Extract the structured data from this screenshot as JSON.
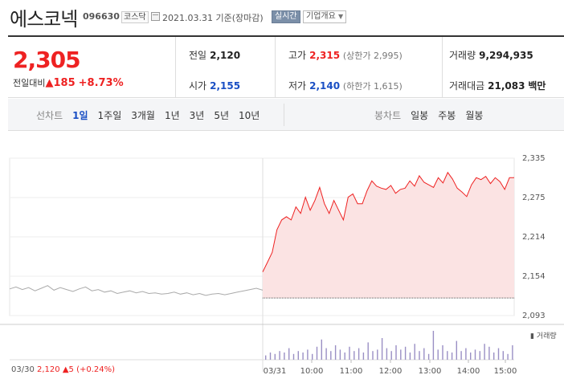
{
  "header": {
    "name": "에스코넥",
    "code": "096630",
    "market": "코스닥",
    "date": "2021.03.31  기준(장마감)",
    "realtime_label": "실시간",
    "company_label": "기업개요"
  },
  "quote": {
    "price": "2,305",
    "change_label": "전일대비",
    "change_value": "185",
    "change_pct": "+8.73%",
    "prev": {
      "label": "전일",
      "value": "2,120"
    },
    "open": {
      "label": "시가",
      "value": "2,155"
    },
    "high": {
      "label": "고가",
      "value": "2,315",
      "sub": "(상한가 2,995)"
    },
    "low": {
      "label": "저가",
      "value": "2,140",
      "sub": "(하한가 1,615)"
    },
    "volume": {
      "label": "거래량",
      "value": "9,294,935"
    },
    "amount": {
      "label": "거래대금",
      "value": "21,083",
      "unit": "백만"
    }
  },
  "tabs": {
    "line_label": "선차트",
    "line_items": [
      "1일",
      "1주일",
      "3개월",
      "1년",
      "3년",
      "5년",
      "10년"
    ],
    "active_line": 0,
    "candle_label": "봉차트",
    "candle_items": [
      "일봉",
      "주봉",
      "월봉"
    ]
  },
  "colors": {
    "up": "#ee2222",
    "down": "#1a4fc4",
    "area": "#fbe3e3"
  },
  "chart_data": {
    "type": "area",
    "y_ticks": [
      "2,335",
      "2,275",
      "2,214",
      "2,154",
      "2,093"
    ],
    "x_ticks": [
      "03/30",
      "03/31",
      "10:00",
      "11:00",
      "12:00",
      "13:00",
      "14:00",
      "15:00"
    ],
    "ylim": [
      2093,
      2335
    ],
    "prev_close_value": 2120,
    "prev_day_label": "03/30",
    "prev_day_close": "2,120",
    "prev_day_change": "5 (+0.24%)",
    "volume_legend": "거래량",
    "prev_day_series": [
      2134,
      2137,
      2133,
      2136,
      2131,
      2135,
      2139,
      2132,
      2136,
      2133,
      2130,
      2134,
      2137,
      2131,
      2133,
      2129,
      2131,
      2127,
      2129,
      2131,
      2128,
      2130,
      2127,
      2128,
      2126,
      2127,
      2129,
      2126,
      2128,
      2125,
      2127,
      2124,
      2126,
      2127,
      2125,
      2127,
      2129,
      2131,
      2133,
      2135,
      2132
    ],
    "today_series": [
      2160,
      2175,
      2190,
      2225,
      2240,
      2245,
      2240,
      2260,
      2250,
      2275,
      2255,
      2270,
      2290,
      2265,
      2250,
      2270,
      2255,
      2240,
      2275,
      2280,
      2265,
      2265,
      2285,
      2300,
      2292,
      2289,
      2287,
      2293,
      2281,
      2287,
      2289,
      2300,
      2292,
      2308,
      2298,
      2294,
      2290,
      2305,
      2297,
      2313,
      2303,
      2289,
      2283,
      2276,
      2294,
      2305,
      2302,
      2307,
      2296,
      2305,
      2299,
      2287,
      2305,
      2305
    ],
    "volume_series": [
      3,
      5,
      4,
      6,
      5,
      8,
      4,
      6,
      5,
      7,
      4,
      9,
      14,
      8,
      6,
      10,
      7,
      5,
      9,
      6,
      8,
      5,
      12,
      6,
      7,
      15,
      8,
      6,
      10,
      7,
      9,
      5,
      11,
      6,
      8,
      4,
      20,
      7,
      10,
      6,
      5,
      13,
      6,
      8,
      5,
      7,
      6,
      11,
      9,
      5,
      8,
      6,
      4,
      10
    ]
  }
}
